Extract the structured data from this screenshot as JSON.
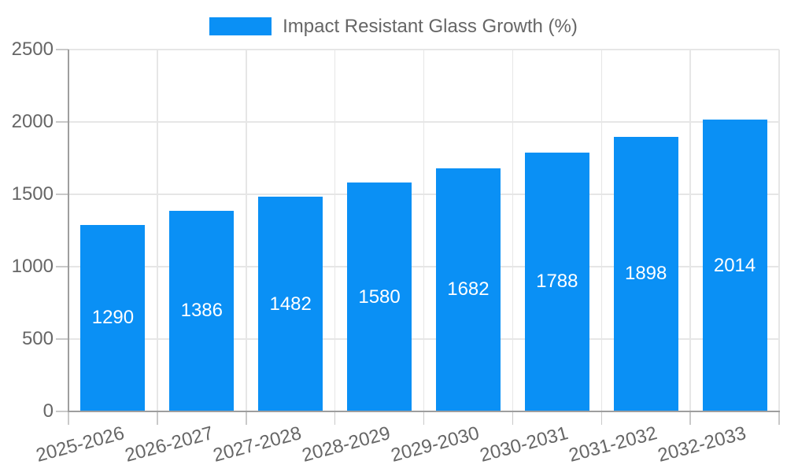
{
  "chart_data": {
    "type": "bar",
    "title": "",
    "legend_label": "Impact Resistant Glass Growth (%)",
    "legend_position": "top-center",
    "categories": [
      "2025-2026",
      "2026-2027",
      "2027-2028",
      "2028-2029",
      "2029-2030",
      "2030-2031",
      "2031-2032",
      "2032-2033"
    ],
    "series": [
      {
        "name": "Impact Resistant Glass Growth (%)",
        "values": [
          1290,
          1386,
          1482,
          1580,
          1682,
          1788,
          1898,
          2014
        ]
      }
    ],
    "xlabel": "",
    "ylabel": "",
    "ylim": [
      0,
      2500
    ],
    "yticks": [
      0,
      500,
      1000,
      1500,
      2000,
      2500
    ],
    "grid": true,
    "value_labels_position": "inside-center",
    "x_label_rotation_deg": -15,
    "colors": {
      "bar": "#0A90F5",
      "axis_text": "#666666",
      "value_label_text": "#FFFFFF",
      "gridline": "#E6E6E6",
      "axis_line": "#9E9E9E",
      "tick": "#C9C9C9",
      "background": "#FFFFFF"
    }
  }
}
